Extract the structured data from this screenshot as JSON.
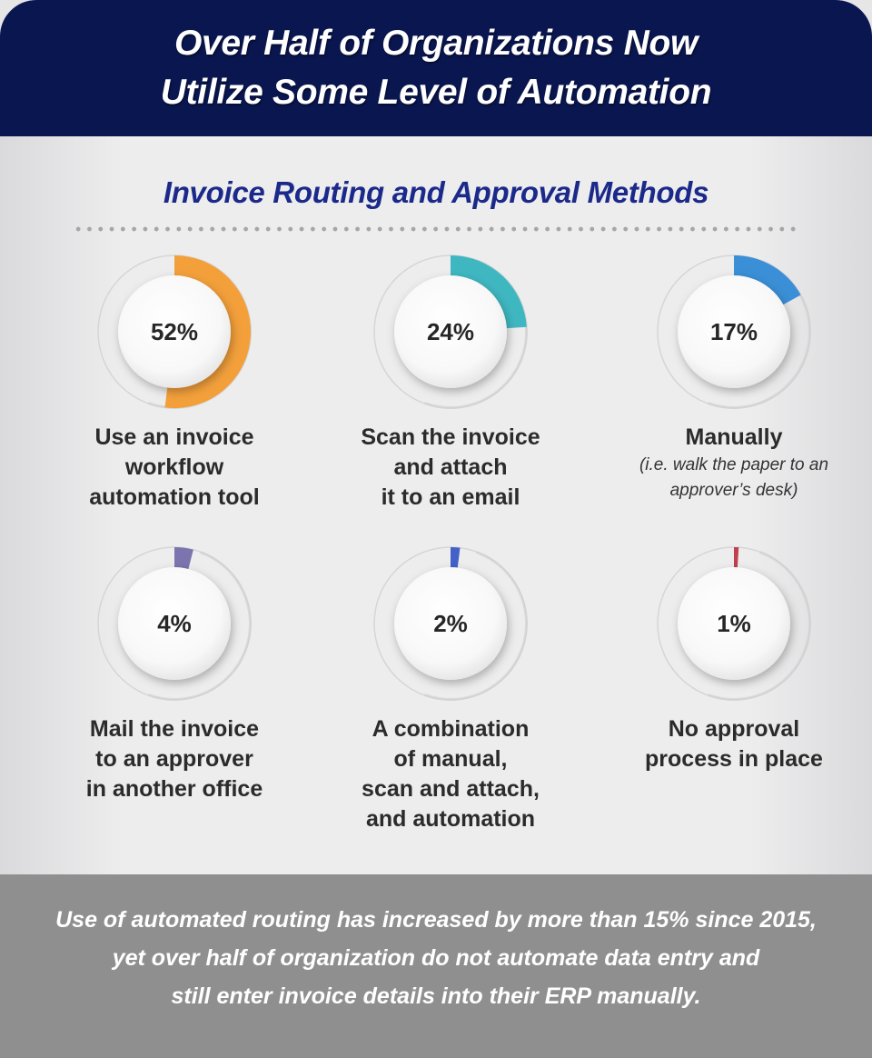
{
  "header": {
    "line1": "Over Half of Organizations Now",
    "line2": "Utilize Some Level of Automation"
  },
  "chart_data": {
    "type": "pie",
    "title": "Invoice Routing and Approval Methods",
    "unit": "%",
    "items": [
      {
        "label": "Use an invoice workflow automation tool",
        "lines": [
          "Use an invoice",
          "workflow",
          "automation tool"
        ],
        "note": "",
        "value": 52,
        "display": "52%",
        "color": "#f3a03b"
      },
      {
        "label": "Scan the invoice and attach it to an email",
        "lines": [
          "Scan the invoice",
          "and attach",
          "it to an email"
        ],
        "note": "",
        "value": 24,
        "display": "24%",
        "color": "#3fb7c1"
      },
      {
        "label": "Manually",
        "lines": [
          "Manually"
        ],
        "note": "(i.e. walk the paper to an approver’s desk)",
        "value": 17,
        "display": "17%",
        "color": "#3a8fd6"
      },
      {
        "label": "Mail the invoice to an approver in another office",
        "lines": [
          "Mail the invoice",
          "to an approver",
          "in another office"
        ],
        "note": "",
        "value": 4,
        "display": "4%",
        "color": "#7b74ae"
      },
      {
        "label": "A combination of manual, scan and attach, and automation",
        "lines": [
          "A combination",
          "of manual,",
          "scan and attach,",
          "and automation"
        ],
        "note": "",
        "value": 2,
        "display": "2%",
        "color": "#4461c9"
      },
      {
        "label": "No approval process in place",
        "lines": [
          "No approval",
          "process in place"
        ],
        "note": "",
        "value": 1,
        "display": "1%",
        "color": "#c0404f"
      }
    ]
  },
  "footer": {
    "lines": [
      "Use of automated routing has increased by more than 15% since 2015,",
      "yet over half of organization do not automate data entry and",
      "still enter invoice details into their ERP manually."
    ]
  }
}
